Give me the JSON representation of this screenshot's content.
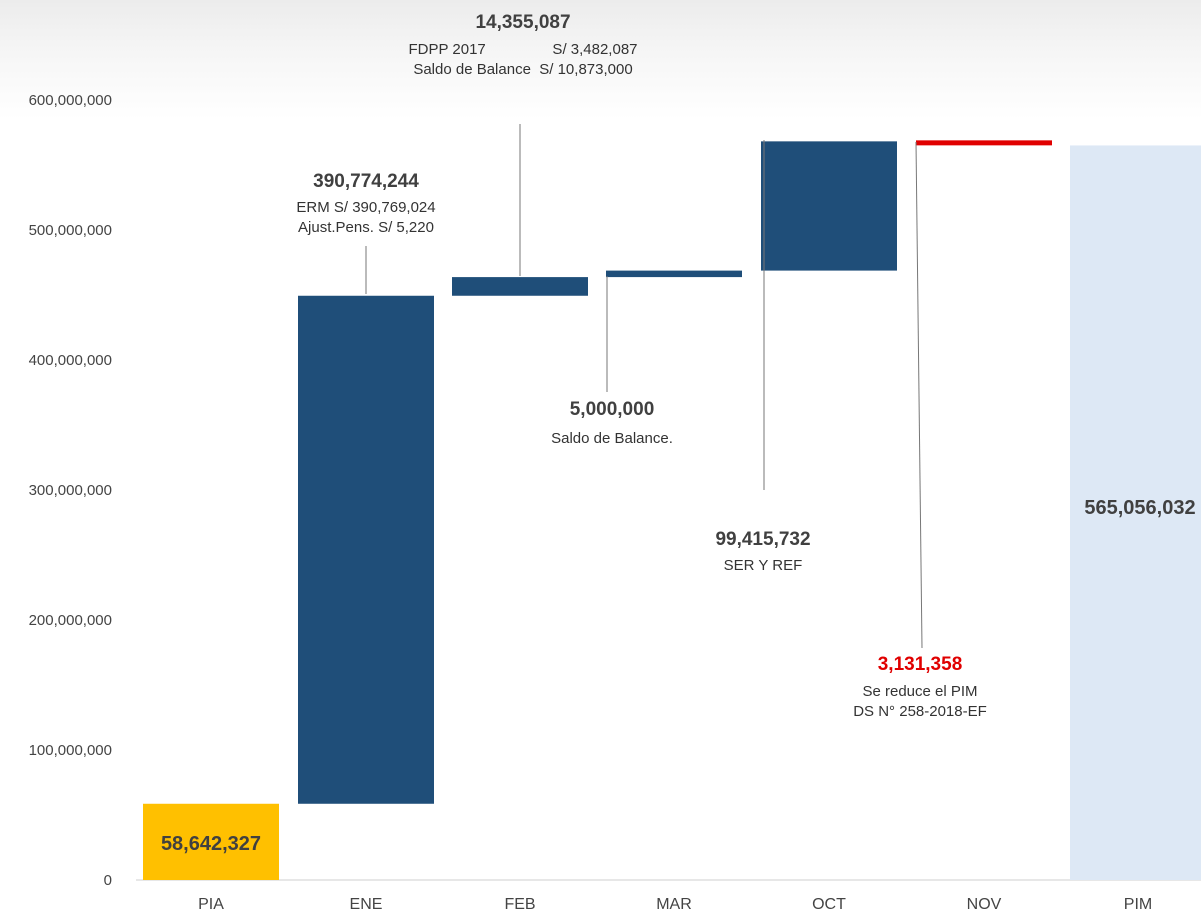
{
  "chart_data": {
    "type": "bar",
    "subtype": "waterfall",
    "title": "",
    "xlabel": "",
    "ylabel": "",
    "ylim": [
      0,
      600000000
    ],
    "yticks": [
      0,
      100000000,
      200000000,
      300000000,
      400000000,
      500000000,
      600000000
    ],
    "ytick_labels": [
      "0",
      "100,000,000",
      "200,000,000",
      "300,000,000",
      "400,000,000",
      "500,000,000",
      "600,000,000"
    ],
    "grid": false,
    "legend": "none",
    "categories": [
      "PIA",
      "ENE",
      "FEB",
      "MAR",
      "OCT",
      "NOV",
      "PIM"
    ],
    "steps": [
      {
        "category": "PIA",
        "kind": "total",
        "start": 0,
        "end": 58642327,
        "color": "#FFC000",
        "label": "58,642,327"
      },
      {
        "category": "ENE",
        "kind": "increase",
        "start": 58642327,
        "end": 449416571,
        "color": "#1F4E79"
      },
      {
        "category": "FEB",
        "kind": "increase",
        "start": 449416571,
        "end": 463771658,
        "color": "#1F4E79"
      },
      {
        "category": "MAR",
        "kind": "increase",
        "start": 463771658,
        "end": 468771658,
        "color": "#1F4E79"
      },
      {
        "category": "OCT",
        "kind": "increase",
        "start": 468771658,
        "end": 568187390,
        "color": "#1F4E79"
      },
      {
        "category": "NOV",
        "kind": "decrease",
        "start": 568187390,
        "end": 565056032,
        "color": "#E00000"
      },
      {
        "category": "PIM",
        "kind": "total",
        "start": 0,
        "end": 565056032,
        "color": "#DDE8F5",
        "label": "565,056,032"
      }
    ],
    "annotations": [
      {
        "category": "ENE",
        "value": "390,774,244",
        "lines": [
          "ERM S/ 390,769,024",
          "Ajust.Pens. S/ 5,220"
        ]
      },
      {
        "category": "FEB",
        "value": "14,355,087",
        "lines": [
          "FDPP 2017                S/ 3,482,087",
          "Saldo de Balance  S/ 10,873,000"
        ]
      },
      {
        "category": "MAR",
        "value": "5,000,000",
        "lines": [
          "Saldo de Balance."
        ]
      },
      {
        "category": "OCT",
        "value": "99,415,732",
        "lines": [
          "SER Y REF"
        ]
      },
      {
        "category": "NOV",
        "value": "3,131,358",
        "value_color": "#E00000",
        "lines": [
          "Se reduce el PIM",
          "DS N° 258-2018-EF"
        ]
      }
    ]
  }
}
